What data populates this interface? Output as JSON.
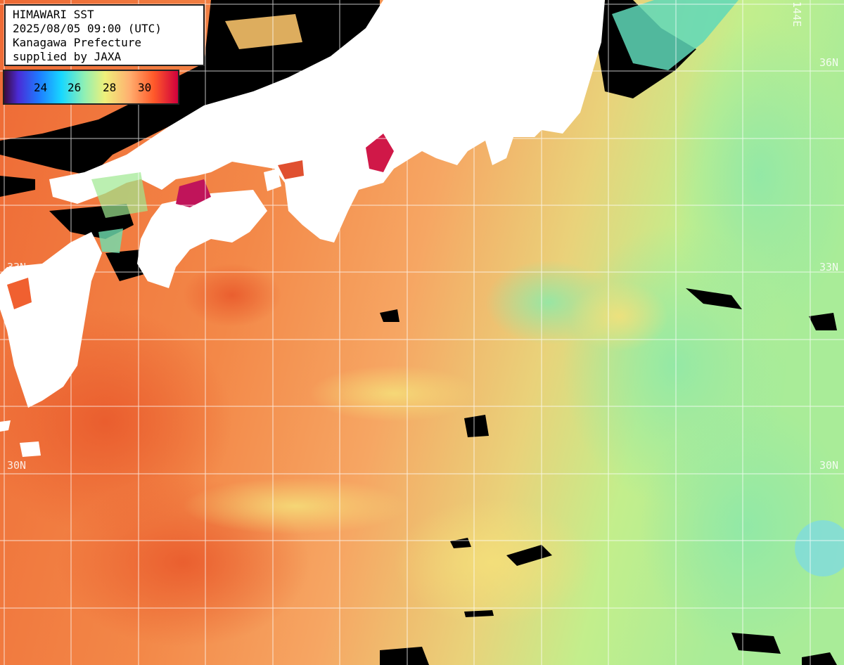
{
  "header": {
    "title": "HIMAWARI SST",
    "datetime": "2025/08/05 09:00 (UTC)",
    "region": "Kanagawa Prefecture",
    "credit": "supplied by JAXA"
  },
  "legend": {
    "unit": "",
    "ticks": [
      "24",
      "26",
      "28",
      "30"
    ],
    "colors": [
      "#3a0b3a",
      "#4a2bd6",
      "#1e7bff",
      "#18d8ff",
      "#8ff0b4",
      "#eef07a",
      "#ffb070",
      "#ff5a2a",
      "#d0003c"
    ]
  },
  "grid_labels": {
    "lat_top": "36N",
    "lat_mid": "33N",
    "lat_bottom": "30N",
    "lat_left_mid": "33N",
    "lat_left_bottom": "30N",
    "lon_top": "144E"
  },
  "colors": {
    "land": "#ffffff",
    "cloud": "#000000",
    "warm_sea": "#f07a3c",
    "mid_sea": "#f8b070",
    "cool_sea": "#c8f08a",
    "cold_sea": "#7fe8b0",
    "hot_coast": "#d01848",
    "grid": "#ffffff"
  }
}
